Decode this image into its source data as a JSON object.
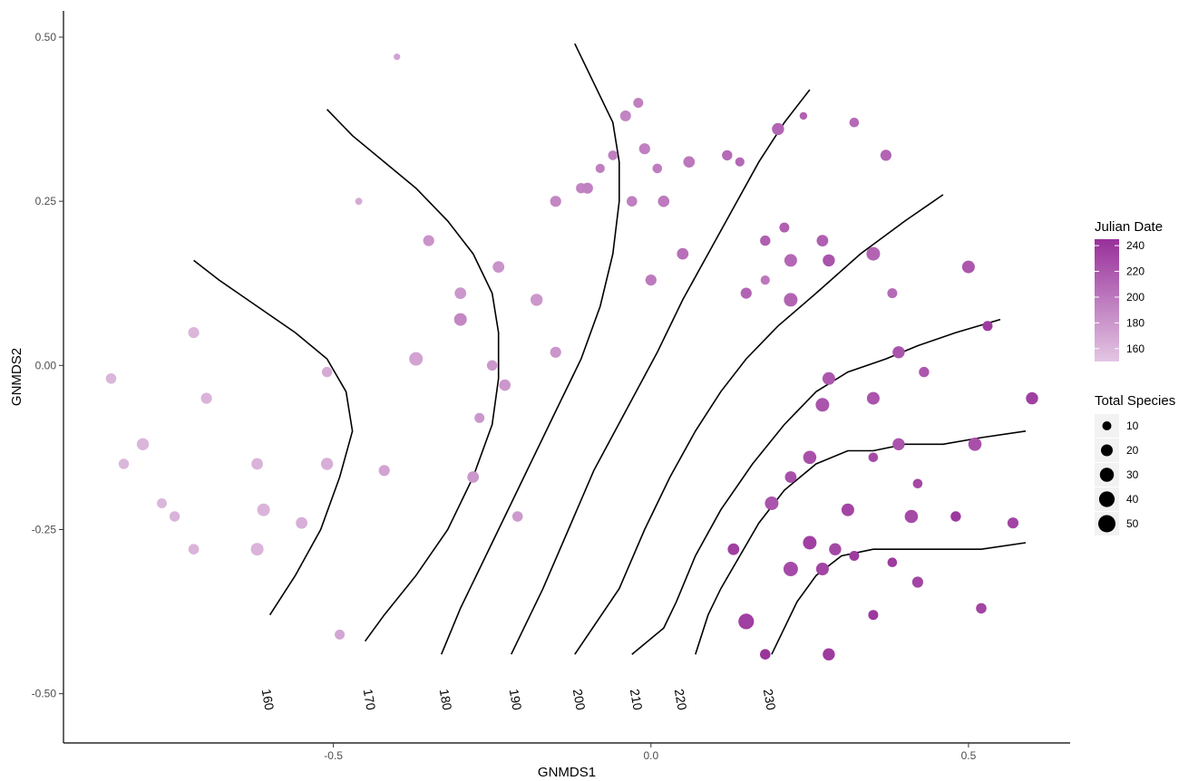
{
  "chart_data": {
    "type": "scatter",
    "xlabel": "GNMDS1",
    "ylabel": "GNMDS2",
    "xlim": [
      -0.925,
      0.66
    ],
    "ylim": [
      -0.575,
      0.54
    ],
    "x_ticks": [
      -0.5,
      0.0,
      0.5
    ],
    "x_tick_labels": [
      "-0.5",
      "0.0",
      "0.5"
    ],
    "y_ticks": [
      -0.5,
      -0.25,
      0.0,
      0.25,
      0.5
    ],
    "y_tick_labels": [
      "-0.50",
      "-0.25",
      "0.00",
      "0.25",
      "0.50"
    ],
    "grid": false,
    "color_scale": {
      "title": "Julian Date",
      "low_color": "#e3c6e3",
      "high_color": "#98309a",
      "min": 150,
      "max": 245,
      "ticks": [
        160,
        180,
        200,
        220,
        240
      ]
    },
    "size_scale": {
      "title": "Total Species",
      "values": [
        10,
        20,
        30,
        40,
        50
      ]
    },
    "legend_position": "right",
    "points": [
      {
        "x": -0.4,
        "y": 0.47,
        "date": 172,
        "species": 3
      },
      {
        "x": -0.46,
        "y": 0.25,
        "date": 168,
        "species": 4
      },
      {
        "x": -0.35,
        "y": 0.19,
        "date": 182,
        "species": 15
      },
      {
        "x": -0.3,
        "y": 0.11,
        "date": 180,
        "species": 17
      },
      {
        "x": -0.3,
        "y": 0.07,
        "date": 190,
        "species": 21
      },
      {
        "x": -0.24,
        "y": 0.15,
        "date": 182,
        "species": 17
      },
      {
        "x": -0.18,
        "y": 0.1,
        "date": 180,
        "species": 19
      },
      {
        "x": -0.15,
        "y": 0.02,
        "date": 181,
        "species": 15
      },
      {
        "x": -0.37,
        "y": 0.01,
        "date": 172,
        "species": 25
      },
      {
        "x": -0.25,
        "y": 0.0,
        "date": 180,
        "species": 13
      },
      {
        "x": -0.51,
        "y": -0.01,
        "date": 168,
        "species": 12
      },
      {
        "x": -0.23,
        "y": -0.03,
        "date": 180,
        "species": 16
      },
      {
        "x": -0.27,
        "y": -0.08,
        "date": 180,
        "species": 11
      },
      {
        "x": -0.85,
        "y": -0.02,
        "date": 160,
        "species": 13
      },
      {
        "x": -0.72,
        "y": 0.05,
        "date": 160,
        "species": 15
      },
      {
        "x": -0.7,
        "y": -0.05,
        "date": 162,
        "species": 15
      },
      {
        "x": -0.8,
        "y": -0.12,
        "date": 160,
        "species": 19
      },
      {
        "x": -0.83,
        "y": -0.15,
        "date": 160,
        "species": 12
      },
      {
        "x": -0.77,
        "y": -0.21,
        "date": 160,
        "species": 11
      },
      {
        "x": -0.75,
        "y": -0.23,
        "date": 162,
        "species": 12
      },
      {
        "x": -0.72,
        "y": -0.28,
        "date": 162,
        "species": 13
      },
      {
        "x": -0.62,
        "y": -0.15,
        "date": 162,
        "species": 17
      },
      {
        "x": -0.61,
        "y": -0.22,
        "date": 162,
        "species": 21
      },
      {
        "x": -0.62,
        "y": -0.28,
        "date": 162,
        "species": 21
      },
      {
        "x": -0.55,
        "y": -0.24,
        "date": 165,
        "species": 17
      },
      {
        "x": -0.51,
        "y": -0.15,
        "date": 165,
        "species": 19
      },
      {
        "x": -0.42,
        "y": -0.16,
        "date": 172,
        "species": 15
      },
      {
        "x": -0.28,
        "y": -0.17,
        "date": 180,
        "species": 17
      },
      {
        "x": -0.21,
        "y": -0.23,
        "date": 178,
        "species": 13
      },
      {
        "x": -0.49,
        "y": -0.41,
        "date": 170,
        "species": 11
      },
      {
        "x": -0.04,
        "y": 0.38,
        "date": 192,
        "species": 14
      },
      {
        "x": -0.02,
        "y": 0.4,
        "date": 195,
        "species": 11
      },
      {
        "x": -0.06,
        "y": 0.32,
        "date": 195,
        "species": 10
      },
      {
        "x": -0.08,
        "y": 0.3,
        "date": 195,
        "species": 9
      },
      {
        "x": -0.01,
        "y": 0.33,
        "date": 195,
        "species": 15
      },
      {
        "x": 0.01,
        "y": 0.3,
        "date": 196,
        "species": 10
      },
      {
        "x": 0.06,
        "y": 0.31,
        "date": 200,
        "species": 16
      },
      {
        "x": -0.11,
        "y": 0.27,
        "date": 192,
        "species": 12
      },
      {
        "x": -0.1,
        "y": 0.27,
        "date": 194,
        "species": 15
      },
      {
        "x": -0.15,
        "y": 0.25,
        "date": 190,
        "species": 15
      },
      {
        "x": -0.03,
        "y": 0.25,
        "date": 195,
        "species": 13
      },
      {
        "x": 0.02,
        "y": 0.25,
        "date": 198,
        "species": 16
      },
      {
        "x": 0.12,
        "y": 0.32,
        "date": 208,
        "species": 12
      },
      {
        "x": 0.14,
        "y": 0.31,
        "date": 210,
        "species": 9
      },
      {
        "x": 0.2,
        "y": 0.36,
        "date": 212,
        "species": 19
      },
      {
        "x": 0.24,
        "y": 0.38,
        "date": 214,
        "species": 5
      },
      {
        "x": 0.32,
        "y": 0.37,
        "date": 208,
        "species": 10
      },
      {
        "x": 0.37,
        "y": 0.32,
        "date": 212,
        "species": 15
      },
      {
        "x": 0.05,
        "y": 0.17,
        "date": 205,
        "species": 17
      },
      {
        "x": 0.0,
        "y": 0.13,
        "date": 198,
        "species": 15
      },
      {
        "x": 0.18,
        "y": 0.19,
        "date": 215,
        "species": 12
      },
      {
        "x": 0.21,
        "y": 0.21,
        "date": 215,
        "species": 11
      },
      {
        "x": 0.27,
        "y": 0.19,
        "date": 215,
        "species": 17
      },
      {
        "x": 0.22,
        "y": 0.16,
        "date": 210,
        "species": 21
      },
      {
        "x": 0.28,
        "y": 0.16,
        "date": 222,
        "species": 19
      },
      {
        "x": 0.35,
        "y": 0.17,
        "date": 212,
        "species": 25
      },
      {
        "x": 0.18,
        "y": 0.13,
        "date": 200,
        "species": 9
      },
      {
        "x": 0.15,
        "y": 0.11,
        "date": 212,
        "species": 15
      },
      {
        "x": 0.22,
        "y": 0.1,
        "date": 212,
        "species": 25
      },
      {
        "x": 0.38,
        "y": 0.11,
        "date": 208,
        "species": 11
      },
      {
        "x": 0.5,
        "y": 0.15,
        "date": 220,
        "species": 21
      },
      {
        "x": 0.53,
        "y": 0.06,
        "date": 238,
        "species": 11
      },
      {
        "x": 0.6,
        "y": -0.05,
        "date": 235,
        "species": 19
      },
      {
        "x": 0.39,
        "y": 0.02,
        "date": 222,
        "species": 19
      },
      {
        "x": 0.43,
        "y": -0.01,
        "date": 220,
        "species": 12
      },
      {
        "x": 0.28,
        "y": -0.02,
        "date": 220,
        "species": 21
      },
      {
        "x": 0.35,
        "y": -0.05,
        "date": 222,
        "species": 21
      },
      {
        "x": 0.27,
        "y": -0.06,
        "date": 222,
        "species": 25
      },
      {
        "x": 0.25,
        "y": -0.14,
        "date": 225,
        "species": 23
      },
      {
        "x": 0.35,
        "y": -0.14,
        "date": 228,
        "species": 10
      },
      {
        "x": 0.39,
        "y": -0.12,
        "date": 222,
        "species": 19
      },
      {
        "x": 0.51,
        "y": -0.12,
        "date": 225,
        "species": 23
      },
      {
        "x": 0.22,
        "y": -0.17,
        "date": 225,
        "species": 17
      },
      {
        "x": 0.19,
        "y": -0.21,
        "date": 222,
        "species": 25
      },
      {
        "x": 0.31,
        "y": -0.22,
        "date": 232,
        "species": 21
      },
      {
        "x": 0.42,
        "y": -0.18,
        "date": 230,
        "species": 10
      },
      {
        "x": 0.41,
        "y": -0.23,
        "date": 228,
        "species": 23
      },
      {
        "x": 0.48,
        "y": -0.23,
        "date": 240,
        "species": 12
      },
      {
        "x": 0.57,
        "y": -0.24,
        "date": 232,
        "species": 15
      },
      {
        "x": 0.13,
        "y": -0.28,
        "date": 235,
        "species": 17
      },
      {
        "x": 0.25,
        "y": -0.27,
        "date": 235,
        "species": 25
      },
      {
        "x": 0.29,
        "y": -0.28,
        "date": 230,
        "species": 19
      },
      {
        "x": 0.32,
        "y": -0.29,
        "date": 238,
        "species": 11
      },
      {
        "x": 0.22,
        "y": -0.31,
        "date": 228,
        "species": 29
      },
      {
        "x": 0.27,
        "y": -0.31,
        "date": 232,
        "species": 21
      },
      {
        "x": 0.38,
        "y": -0.3,
        "date": 238,
        "species": 10
      },
      {
        "x": 0.42,
        "y": -0.33,
        "date": 232,
        "species": 15
      },
      {
        "x": 0.15,
        "y": -0.39,
        "date": 235,
        "species": 35
      },
      {
        "x": 0.35,
        "y": -0.38,
        "date": 240,
        "species": 11
      },
      {
        "x": 0.52,
        "y": -0.37,
        "date": 232,
        "species": 13
      },
      {
        "x": 0.18,
        "y": -0.44,
        "date": 242,
        "species": 13
      },
      {
        "x": 0.28,
        "y": -0.44,
        "date": 238,
        "species": 19
      }
    ],
    "contours": [
      {
        "level": "160",
        "points": [
          [
            -0.72,
            0.16
          ],
          [
            -0.68,
            0.13
          ],
          [
            -0.62,
            0.09
          ],
          [
            -0.56,
            0.05
          ],
          [
            -0.51,
            0.01
          ],
          [
            -0.48,
            -0.04
          ],
          [
            -0.47,
            -0.1
          ],
          [
            -0.49,
            -0.17
          ],
          [
            -0.52,
            -0.25
          ],
          [
            -0.56,
            -0.32
          ],
          [
            -0.6,
            -0.38
          ]
        ]
      },
      {
        "level": "170",
        "points": [
          [
            -0.51,
            0.39
          ],
          [
            -0.47,
            0.35
          ],
          [
            -0.42,
            0.31
          ],
          [
            -0.37,
            0.27
          ],
          [
            -0.32,
            0.22
          ],
          [
            -0.28,
            0.17
          ],
          [
            -0.25,
            0.11
          ],
          [
            -0.24,
            0.05
          ],
          [
            -0.24,
            -0.02
          ],
          [
            -0.25,
            -0.09
          ],
          [
            -0.28,
            -0.17
          ],
          [
            -0.32,
            -0.25
          ],
          [
            -0.37,
            -0.32
          ],
          [
            -0.42,
            -0.38
          ],
          [
            -0.45,
            -0.42
          ]
        ]
      },
      {
        "level": "180",
        "points": [
          [
            -0.12,
            0.49
          ],
          [
            -0.09,
            0.43
          ],
          [
            -0.06,
            0.37
          ],
          [
            -0.05,
            0.31
          ],
          [
            -0.05,
            0.25
          ],
          [
            -0.06,
            0.17
          ],
          [
            -0.08,
            0.09
          ],
          [
            -0.11,
            0.01
          ],
          [
            -0.15,
            -0.07
          ],
          [
            -0.19,
            -0.15
          ],
          [
            -0.23,
            -0.23
          ],
          [
            -0.27,
            -0.31
          ],
          [
            -0.3,
            -0.37
          ],
          [
            -0.33,
            -0.44
          ]
        ]
      },
      {
        "level": "190",
        "points": [
          [
            0.25,
            0.42
          ],
          [
            0.21,
            0.37
          ],
          [
            0.17,
            0.31
          ],
          [
            0.13,
            0.24
          ],
          [
            0.09,
            0.17
          ],
          [
            0.05,
            0.1
          ],
          [
            0.01,
            0.02
          ],
          [
            -0.04,
            -0.07
          ],
          [
            -0.09,
            -0.16
          ],
          [
            -0.13,
            -0.25
          ],
          [
            -0.17,
            -0.34
          ],
          [
            -0.22,
            -0.44
          ]
        ]
      },
      {
        "level": "200",
        "points": [
          [
            0.46,
            0.26
          ],
          [
            0.4,
            0.22
          ],
          [
            0.33,
            0.17
          ],
          [
            0.26,
            0.11
          ],
          [
            0.2,
            0.06
          ],
          [
            0.15,
            0.01
          ],
          [
            0.11,
            -0.04
          ],
          [
            0.07,
            -0.1
          ],
          [
            0.03,
            -0.17
          ],
          [
            -0.01,
            -0.25
          ],
          [
            -0.05,
            -0.34
          ],
          [
            -0.12,
            -0.44
          ]
        ]
      },
      {
        "level": "210",
        "points": [
          [
            0.55,
            0.07
          ],
          [
            0.48,
            0.05
          ],
          [
            0.42,
            0.03
          ],
          [
            0.37,
            0.01
          ],
          [
            0.31,
            -0.01
          ],
          [
            0.26,
            -0.04
          ],
          [
            0.21,
            -0.09
          ],
          [
            0.16,
            -0.15
          ],
          [
            0.11,
            -0.22
          ],
          [
            0.07,
            -0.29
          ],
          [
            0.04,
            -0.36
          ],
          [
            0.02,
            -0.4
          ],
          [
            -0.03,
            -0.44
          ]
        ]
      },
      {
        "level": "220",
        "points": [
          [
            0.59,
            -0.1
          ],
          [
            0.52,
            -0.11
          ],
          [
            0.46,
            -0.12
          ],
          [
            0.4,
            -0.12
          ],
          [
            0.35,
            -0.13
          ],
          [
            0.31,
            -0.13
          ],
          [
            0.26,
            -0.15
          ],
          [
            0.21,
            -0.19
          ],
          [
            0.17,
            -0.24
          ],
          [
            0.14,
            -0.29
          ],
          [
            0.11,
            -0.34
          ],
          [
            0.09,
            -0.38
          ],
          [
            0.07,
            -0.44
          ]
        ]
      },
      {
        "level": "230",
        "points": [
          [
            0.59,
            -0.27
          ],
          [
            0.52,
            -0.28
          ],
          [
            0.44,
            -0.28
          ],
          [
            0.39,
            -0.28
          ],
          [
            0.35,
            -0.28
          ],
          [
            0.3,
            -0.29
          ],
          [
            0.26,
            -0.32
          ],
          [
            0.23,
            -0.36
          ],
          [
            0.21,
            -0.4
          ],
          [
            0.19,
            -0.44
          ]
        ]
      }
    ],
    "contour_labels": [
      {
        "text": "160",
        "x": -0.61,
        "y": -0.51
      },
      {
        "text": "170",
        "x": -0.45,
        "y": -0.51
      },
      {
        "text": "180",
        "x": -0.33,
        "y": -0.51
      },
      {
        "text": "190",
        "x": -0.22,
        "y": -0.51
      },
      {
        "text": "200",
        "x": -0.12,
        "y": -0.51
      },
      {
        "text": "210",
        "x": -0.03,
        "y": -0.51
      },
      {
        "text": "220",
        "x": 0.04,
        "y": -0.51
      },
      {
        "text": "230",
        "x": 0.18,
        "y": -0.51
      }
    ]
  }
}
